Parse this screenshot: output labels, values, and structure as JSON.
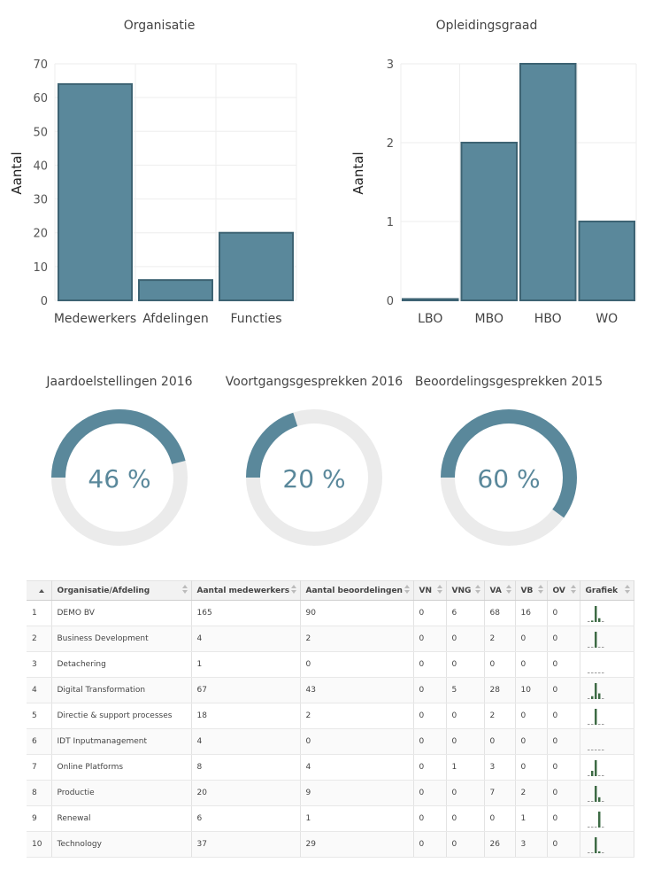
{
  "colors": {
    "bar": "#5a889b",
    "bar_stroke": "#3d6373",
    "donut_fg": "#5a889b",
    "donut_bg": "#ebebeb",
    "spark": "#3e6b45"
  },
  "chart_data": [
    {
      "type": "bar",
      "title": "Organisatie",
      "ylabel": "Aantal",
      "categories": [
        "Medewerkers",
        "Afdelingen",
        "Functies"
      ],
      "values": [
        64,
        6,
        20
      ],
      "ylim": [
        0,
        70
      ],
      "yticks": [
        0,
        10,
        20,
        30,
        40,
        50,
        60,
        70
      ],
      "grid": true
    },
    {
      "type": "bar",
      "title": "Opleidingsgraad",
      "ylabel": "Aantal",
      "categories": [
        "LBO",
        "MBO",
        "HBO",
        "WO"
      ],
      "values": [
        0,
        2,
        3,
        1
      ],
      "ylim": [
        0,
        3
      ],
      "yticks": [
        0,
        1,
        2,
        3
      ],
      "grid": true
    }
  ],
  "donuts": [
    {
      "title": "Jaardoelstellingen 2016",
      "value": 46,
      "label": "46 %"
    },
    {
      "title": "Voortgangsgesprekken 2016",
      "value": 20,
      "label": "20 %"
    },
    {
      "title": "Beoordelingsgesprekken 2015",
      "value": 60,
      "label": "60 %"
    }
  ],
  "table": {
    "columns": [
      "",
      "Organisatie/Afdeling",
      "Aantal medewerkers",
      "Aantal beoordelingen",
      "VN",
      "VNG",
      "VA",
      "VB",
      "OV",
      "Grafiek"
    ],
    "rows": [
      {
        "n": "1",
        "org": "DEMO BV",
        "med": "165",
        "beo": "90",
        "vn": "0",
        "vng": "6",
        "va": "68",
        "vb": "16",
        "ov": "0"
      },
      {
        "n": "2",
        "org": "Business Development",
        "med": "4",
        "beo": "2",
        "vn": "0",
        "vng": "0",
        "va": "2",
        "vb": "0",
        "ov": "0"
      },
      {
        "n": "3",
        "org": "Detachering",
        "med": "1",
        "beo": "0",
        "vn": "0",
        "vng": "0",
        "va": "0",
        "vb": "0",
        "ov": "0"
      },
      {
        "n": "4",
        "org": "Digital Transformation",
        "med": "67",
        "beo": "43",
        "vn": "0",
        "vng": "5",
        "va": "28",
        "vb": "10",
        "ov": "0"
      },
      {
        "n": "5",
        "org": "Directie & support processes",
        "med": "18",
        "beo": "2",
        "vn": "0",
        "vng": "0",
        "va": "2",
        "vb": "0",
        "ov": "0"
      },
      {
        "n": "6",
        "org": "IDT Inputmanagement",
        "med": "4",
        "beo": "0",
        "vn": "0",
        "vng": "0",
        "va": "0",
        "vb": "0",
        "ov": "0"
      },
      {
        "n": "7",
        "org": "Online Platforms",
        "med": "8",
        "beo": "4",
        "vn": "0",
        "vng": "1",
        "va": "3",
        "vb": "0",
        "ov": "0"
      },
      {
        "n": "8",
        "org": "Productie",
        "med": "20",
        "beo": "9",
        "vn": "0",
        "vng": "0",
        "va": "7",
        "vb": "2",
        "ov": "0"
      },
      {
        "n": "9",
        "org": "Renewal",
        "med": "6",
        "beo": "1",
        "vn": "0",
        "vng": "0",
        "va": "0",
        "vb": "1",
        "ov": "0"
      },
      {
        "n": "10",
        "org": "Technology",
        "med": "37",
        "beo": "29",
        "vn": "0",
        "vng": "0",
        "va": "26",
        "vb": "3",
        "ov": "0"
      }
    ]
  }
}
